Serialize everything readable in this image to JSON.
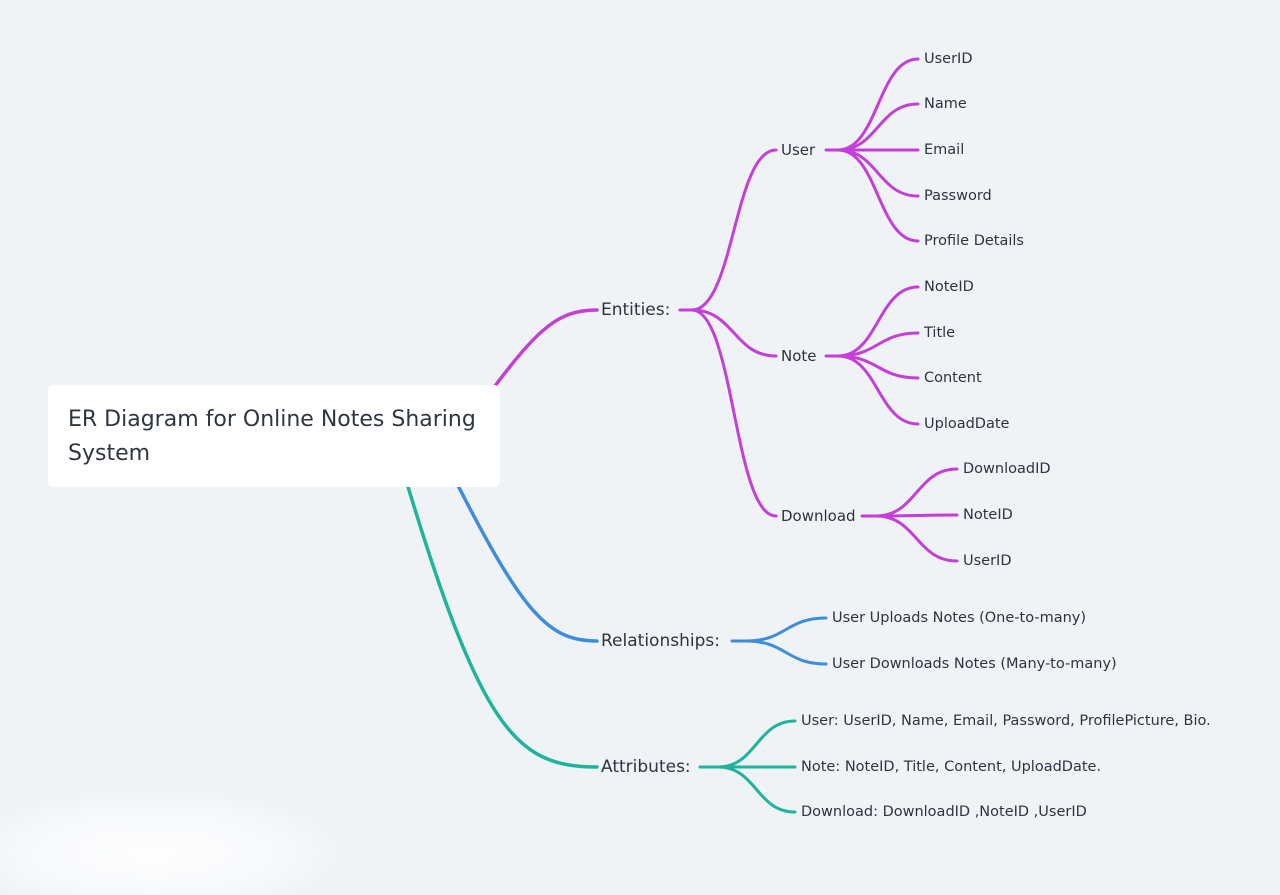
{
  "root": {
    "title_line1": "ER Diagram for Online Notes Sharing",
    "title_line2": "System"
  },
  "colors": {
    "entities": "#c43fd8",
    "relationships": "#3e8ddc",
    "attributes": "#1fb39c"
  },
  "branches": {
    "entities": {
      "label": "Entities:",
      "children": {
        "user": {
          "label": "User",
          "children": [
            "UserID",
            "Name",
            "Email",
            "Password",
            "Profile Details"
          ]
        },
        "note": {
          "label": "Note",
          "children": [
            "NoteID",
            "Title",
            "Content",
            "UploadDate"
          ]
        },
        "download": {
          "label": "Download",
          "children": [
            "DownloadID",
            "NoteID",
            "UserID"
          ]
        }
      }
    },
    "relationships": {
      "label": "Relationships:",
      "children": [
        "User Uploads Notes (One-to-many)",
        "User Downloads Notes (Many-to-many)"
      ]
    },
    "attributes": {
      "label": "Attributes:",
      "children": [
        "User: UserID, Name, Email, Password, ProfilePicture, Bio.",
        "Note: NoteID, Title, Content, UploadDate.",
        "Download: DownloadID ,NoteID ,UserID"
      ]
    }
  }
}
